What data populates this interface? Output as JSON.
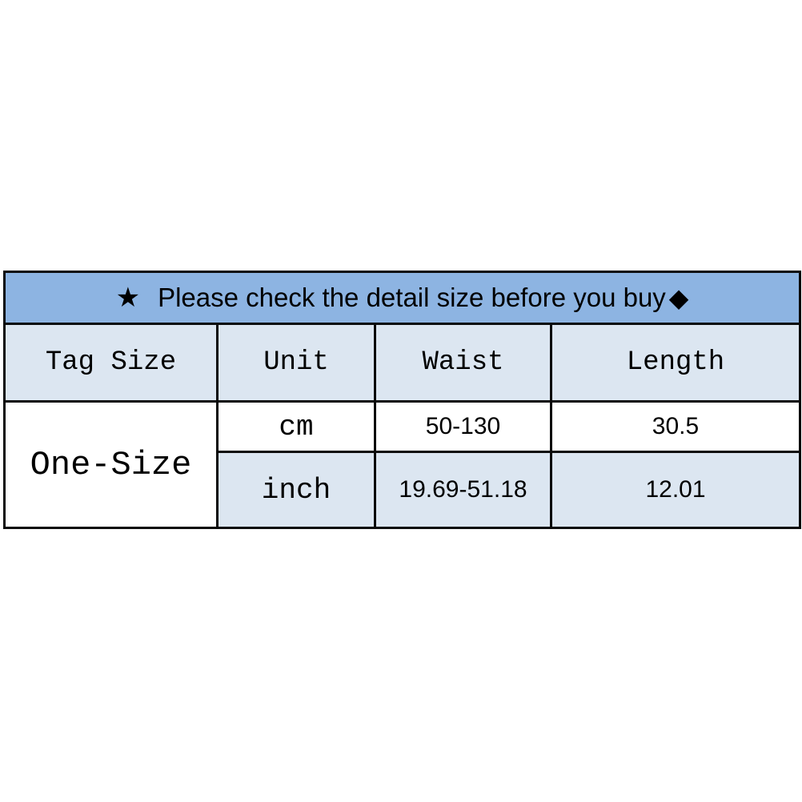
{
  "banner": {
    "star_icon": "★",
    "text": "Please check the detail size before you buy",
    "diamond_icon": "◆"
  },
  "table": {
    "columns": [
      "Tag Size",
      "Unit",
      "Waist",
      "Length"
    ],
    "tag_size": "One-Size",
    "rows": [
      {
        "unit": "cm",
        "waist": "50-130",
        "length": "30.5"
      },
      {
        "unit": "inch",
        "waist": "19.69-51.18",
        "length": "12.01"
      }
    ]
  },
  "colors": {
    "banner_bg": "#8db4e2",
    "header_bg": "#dce6f1",
    "row_alt_bg": "#dce6f1",
    "border": "#0a0a0a",
    "text": "#000000",
    "page_bg": "#ffffff"
  }
}
